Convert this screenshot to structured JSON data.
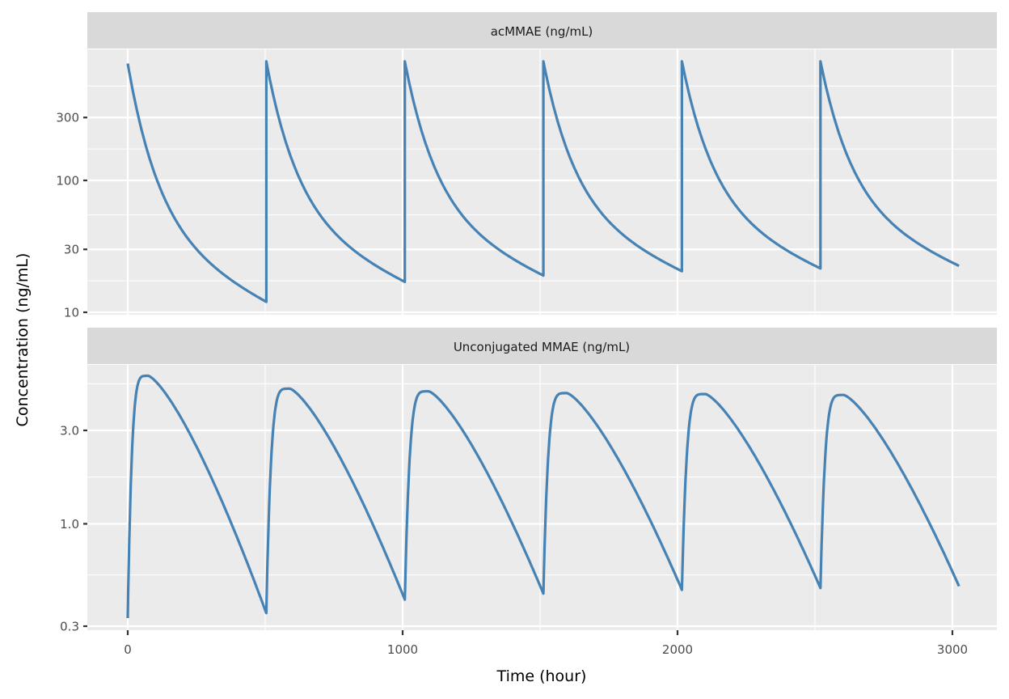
{
  "chart_data": {
    "type": "line",
    "layout": "facet_wrap (2 rows, 1 column, free y scales, log10 y)",
    "xlabel": "Time (hour)",
    "ylabel": "Concentration (ng/mL)",
    "x_ticks": [
      0,
      1000,
      2000,
      3000
    ],
    "x_tick_labels": [
      "0",
      "1000",
      "2000",
      "3000"
    ],
    "xlim": [
      0,
      3024
    ],
    "line_color": "#4682B4",
    "panel_background": "#EBEBEB",
    "strip_background": "#D9D9D9",
    "grid": true,
    "dose_times": [
      0,
      504,
      1008,
      1512,
      2016,
      2520
    ],
    "panels": [
      {
        "title": "acMMAE (ng/mL)",
        "y_scale": "log10",
        "y_ticks": [
          10,
          30,
          100,
          300
        ],
        "y_tick_labels": [
          "10",
          "30",
          "100",
          "300"
        ],
        "ylim": [
          9.5,
          900
        ],
        "peaks": [
          {
            "x": 0,
            "y": 770
          },
          {
            "x": 504,
            "y": 800
          },
          {
            "x": 1008,
            "y": 800
          },
          {
            "x": 1512,
            "y": 800
          },
          {
            "x": 2016,
            "y": 800
          },
          {
            "x": 2520,
            "y": 800
          }
        ],
        "troughs": [
          {
            "x": 504,
            "y": 12
          },
          {
            "x": 1008,
            "y": 17
          },
          {
            "x": 1512,
            "y": 19
          },
          {
            "x": 2016,
            "y": 20.5
          },
          {
            "x": 2520,
            "y": 21.5
          },
          {
            "x": 3024,
            "y": 22.5
          }
        ]
      },
      {
        "title": "Unconjugated MMAE (ng/mL)",
        "y_scale": "log10",
        "y_ticks": [
          0.3,
          1.0,
          3.0
        ],
        "y_tick_labels": [
          "0.3",
          "1.0",
          "3.0"
        ],
        "ylim": [
          0.29,
          7.2
        ],
        "start": {
          "x": 0,
          "y": 0.33
        },
        "peaks": [
          {
            "x": 75,
            "y": 5.7
          },
          {
            "x": 590,
            "y": 4.9
          },
          {
            "x": 1095,
            "y": 4.75
          },
          {
            "x": 1598,
            "y": 4.65
          },
          {
            "x": 2102,
            "y": 4.6
          },
          {
            "x": 2605,
            "y": 4.55
          }
        ],
        "troughs": [
          {
            "x": 504,
            "y": 0.35
          },
          {
            "x": 1008,
            "y": 0.41
          },
          {
            "x": 1512,
            "y": 0.44
          },
          {
            "x": 2016,
            "y": 0.46
          },
          {
            "x": 2520,
            "y": 0.47
          },
          {
            "x": 3024,
            "y": 0.48
          }
        ]
      }
    ]
  }
}
